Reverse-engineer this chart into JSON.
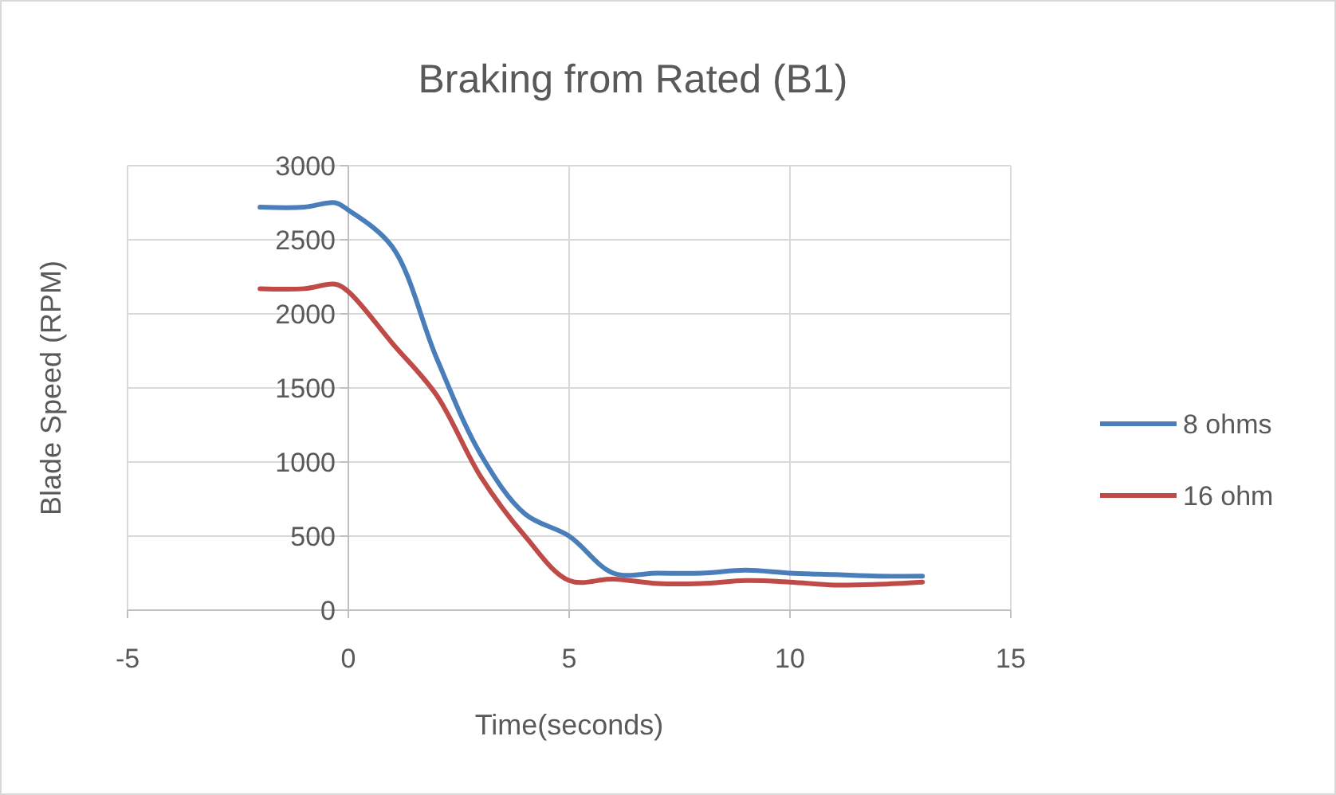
{
  "chart_data": {
    "type": "line",
    "title": "Braking from Rated (B1)",
    "xlabel": "Time(seconds)",
    "ylabel": "Blade Speed (RPM)",
    "x": [
      -2,
      -1,
      -0.3,
      0,
      1,
      2,
      3,
      4,
      5,
      6,
      7,
      8,
      9,
      10,
      11,
      12,
      13
    ],
    "series": [
      {
        "name": "8 ohms",
        "color": "#4a7ebb",
        "values": [
          2720,
          2720,
          2750,
          2700,
          2450,
          1700,
          1050,
          650,
          500,
          250,
          250,
          250,
          270,
          250,
          240,
          230,
          230
        ]
      },
      {
        "name": "16 ohm",
        "color": "#be4b48",
        "values": [
          2170,
          2170,
          2200,
          2150,
          1800,
          1450,
          900,
          500,
          200,
          210,
          180,
          180,
          200,
          190,
          170,
          175,
          190
        ]
      }
    ],
    "xlim": [
      -5,
      15
    ],
    "xticks": [
      -5,
      0,
      5,
      10,
      15
    ],
    "ylim": [
      0,
      3000
    ],
    "yticks": [
      0,
      500,
      1000,
      1500,
      2000,
      2500,
      3000
    ],
    "grid": true,
    "legend": "right",
    "marker": "none",
    "line_style": "solid"
  }
}
